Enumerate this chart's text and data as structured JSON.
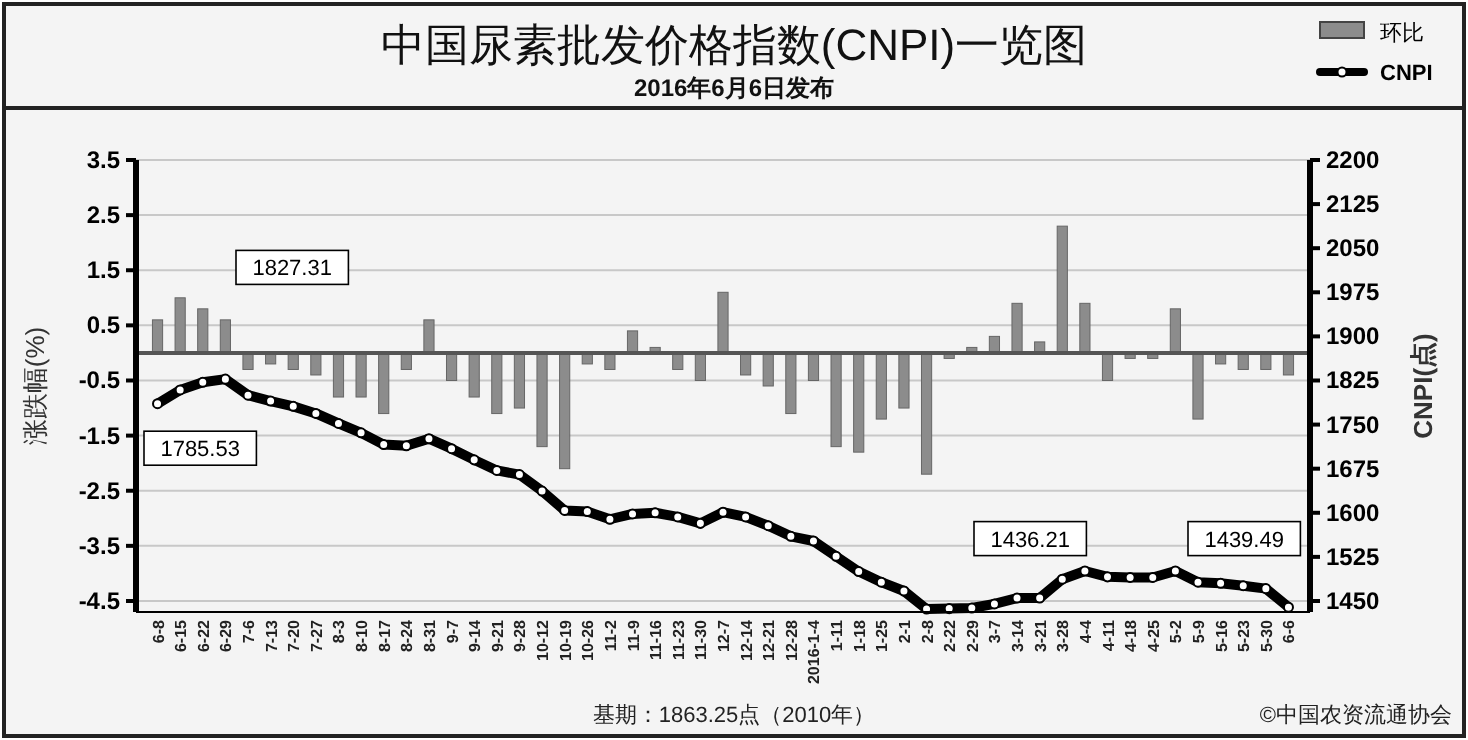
{
  "chart_data": {
    "type": "bar",
    "title": "中国尿素批发价格指数(CNPI)一览图",
    "subtitle": "2016年6月6日发布",
    "ylabel": "涨跌幅(%)",
    "y2label": "CNPI(点)",
    "categories": [
      "6-8",
      "6-15",
      "6-22",
      "6-29",
      "7-6",
      "7-13",
      "7-20",
      "7-27",
      "8-3",
      "8-10",
      "8-17",
      "8-24",
      "8-31",
      "9-7",
      "9-14",
      "9-21",
      "9-28",
      "10-12",
      "10-19",
      "10-26",
      "11-2",
      "11-9",
      "11-16",
      "11-23",
      "11-30",
      "12-7",
      "12-14",
      "12-21",
      "12-28",
      "2016-1-4",
      "1-11",
      "1-18",
      "1-25",
      "2-1",
      "2-8",
      "2-22",
      "2-29",
      "3-7",
      "3-14",
      "3-21",
      "3-28",
      "4-4",
      "4-11",
      "4-18",
      "4-25",
      "5-2",
      "5-9",
      "5-16",
      "5-23",
      "5-30",
      "6-6"
    ],
    "series": [
      {
        "name": "环比",
        "color": "#8c8c8c",
        "values": [
          0.6,
          1.0,
          0.8,
          0.6,
          -0.3,
          -0.2,
          -0.3,
          -0.4,
          -0.8,
          -0.8,
          -1.1,
          -0.3,
          0.6,
          -0.5,
          -0.8,
          -1.1,
          -1.0,
          -1.7,
          -2.1,
          -0.2,
          -0.3,
          0.4,
          0.1,
          -0.3,
          -0.5,
          1.1,
          -0.4,
          -0.6,
          -1.1,
          -0.5,
          -1.7,
          -1.8,
          -1.2,
          -1.0,
          -2.2,
          -0.1,
          0.1,
          0.3,
          0.9,
          0.2,
          2.3,
          0.9,
          -0.5,
          -0.1,
          -0.1,
          0.8,
          -1.2,
          -0.2,
          -0.3,
          -0.3,
          -0.4
        ]
      },
      {
        "name": "CNPI",
        "type": "line",
        "axis": "y2",
        "color": "#000000",
        "values": [
          1785.53,
          1809,
          1822,
          1827.31,
          1800,
          1790,
          1781,
          1769,
          1752,
          1736,
          1716,
          1714,
          1726,
          1709,
          1690,
          1672,
          1665,
          1637,
          1604,
          1602,
          1589,
          1598,
          1600,
          1593,
          1582,
          1601,
          1593,
          1578,
          1560,
          1552,
          1526,
          1500,
          1482,
          1467,
          1436.21,
          1437,
          1438,
          1445,
          1455,
          1455,
          1487,
          1501,
          1491,
          1490,
          1490,
          1501,
          1482,
          1480,
          1476,
          1471,
          1439.49
        ]
      }
    ],
    "ylim": [
      -4.7,
      3.5
    ],
    "yticks": [
      3.5,
      2.5,
      1.5,
      0.5,
      -0.5,
      -1.5,
      -2.5,
      -3.5,
      -4.5
    ],
    "y2lim": [
      1431.25,
      2200
    ],
    "y2ticks": [
      2200,
      2125,
      2050,
      1975,
      1900,
      1825,
      1750,
      1675,
      1600,
      1525,
      1450
    ],
    "grid": "y",
    "legend": "top right",
    "marker": "circle",
    "annotations": [
      "1785.53",
      "1827.31",
      "1436.21",
      "1439.49",
      "基期：1863.25点（2010年）",
      "©中国农资流通协会"
    ]
  }
}
